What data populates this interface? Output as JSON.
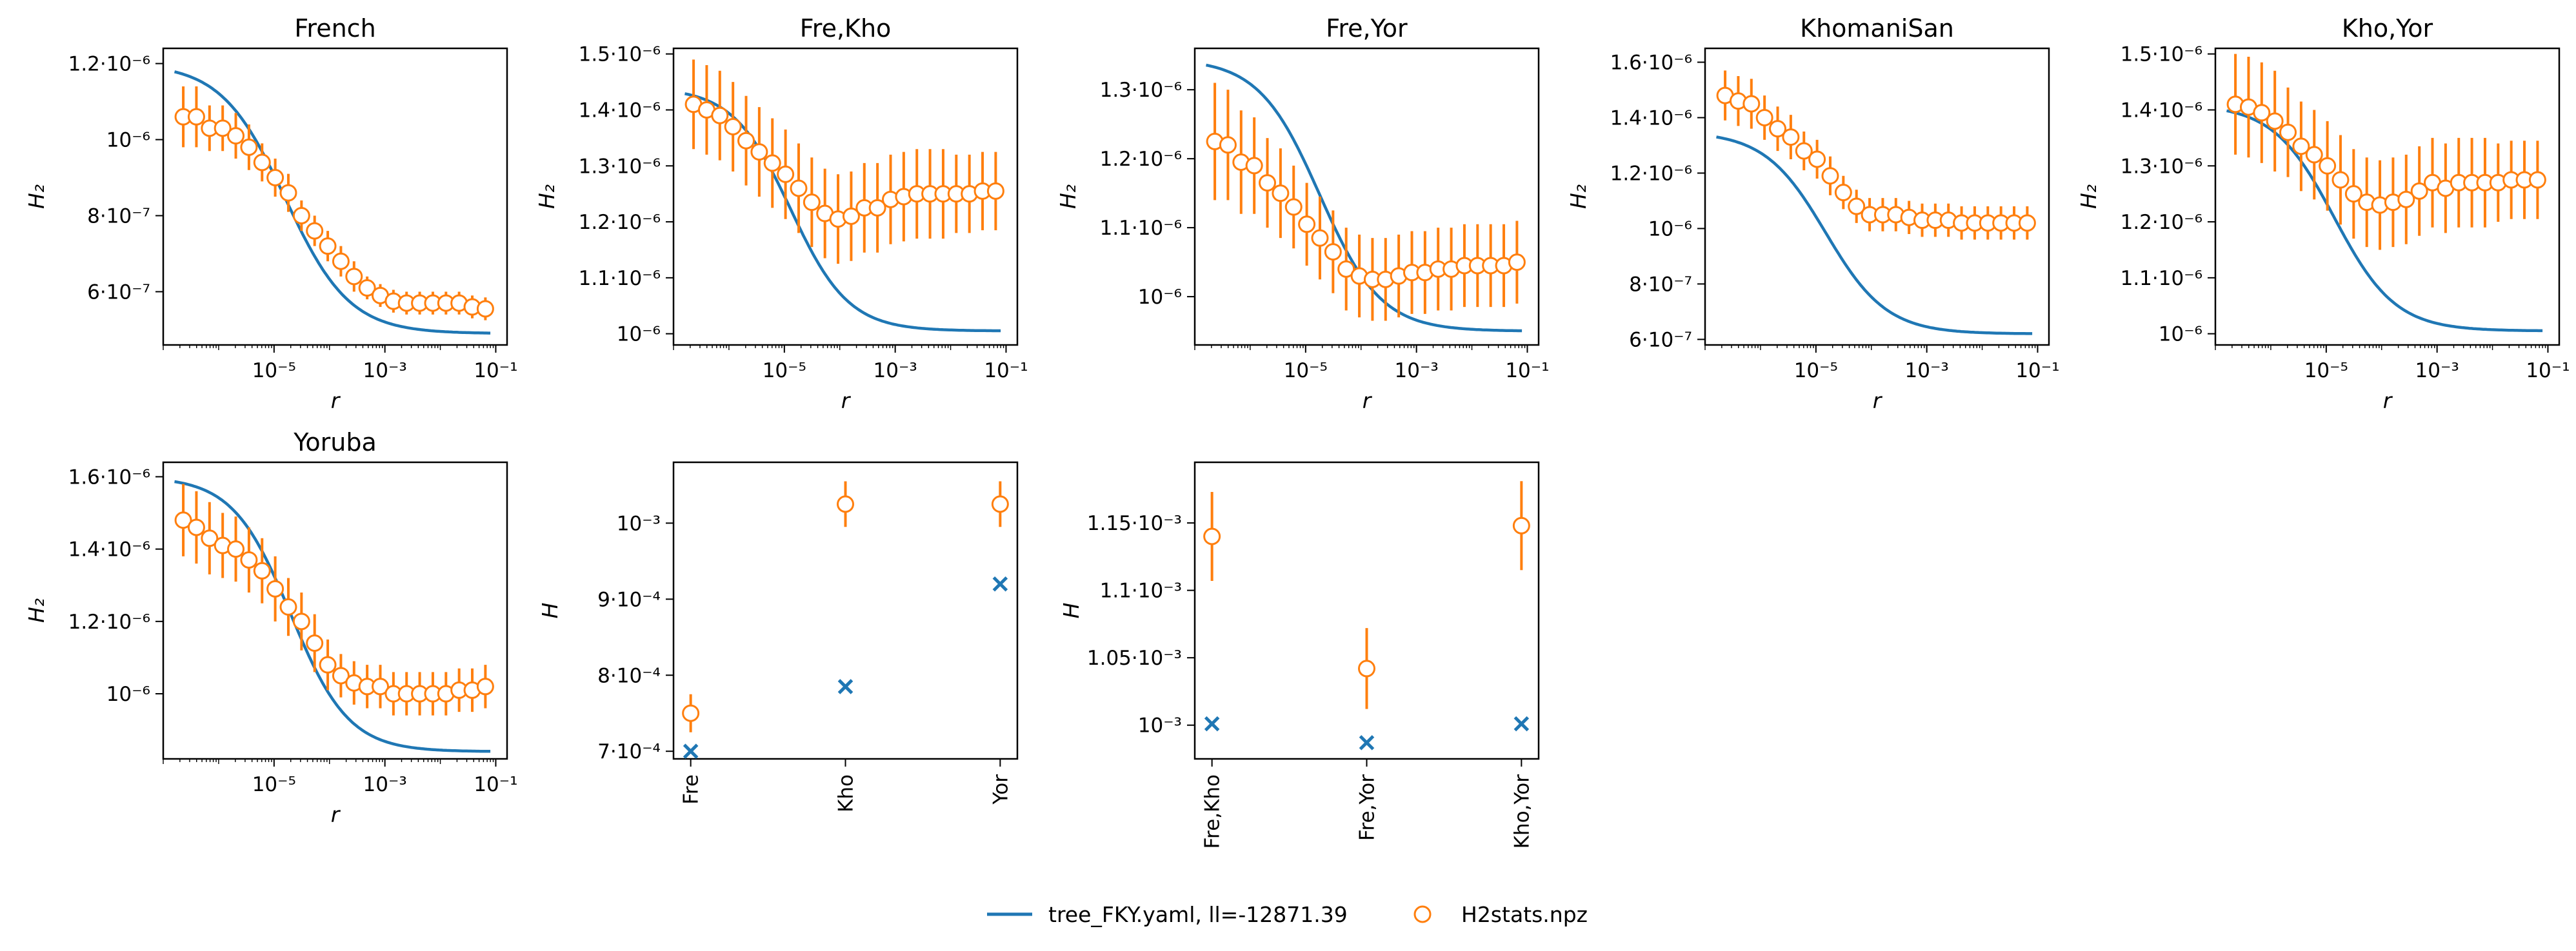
{
  "colors": {
    "model": "#1f77b4",
    "data": "#ff7f0e",
    "axes": "#000000"
  },
  "legend": {
    "model_label": "tree_FKY.yaml, ll=-12871.39",
    "data_label": "H2stats.npz"
  },
  "chart_data": [
    {
      "type": "line",
      "title": "French",
      "xlabel": "r",
      "ylabel": "H₂",
      "xscale": "log",
      "xlim": [
        1e-07,
        0.16
      ],
      "ylim": [
        4.6e-07,
        1.24e-06
      ],
      "xticks": [
        1e-05,
        0.001,
        0.1
      ],
      "xtick_labels": [
        "10⁻⁵",
        "10⁻³",
        "10⁻¹"
      ],
      "yticks": [
        6e-07,
        8e-07,
        1e-06,
        1.2e-06
      ],
      "ytick_labels": [
        "6·10⁻⁷",
        "8·10⁻⁷",
        "10⁻⁶",
        "1.2·10⁻⁶"
      ],
      "series": [
        {
          "name": "tree_FKY.yaml, ll=-12871.39",
          "kind": "line",
          "x_range": [
            1.6e-07,
            0.08
          ],
          "x_center": 1.6e-05,
          "width_decades": 1.05,
          "y_low": 4.9e-07,
          "y_high": 1.2e-06
        },
        {
          "name": "H2stats.npz",
          "kind": "errorbar",
          "values": [
            1.06e-06,
            1.06e-06,
            1.03e-06,
            1.03e-06,
            1.01e-06,
            9.8e-07,
            9.4e-07,
            9e-07,
            8.6e-07,
            8e-07,
            7.6e-07,
            7.2e-07,
            6.8e-07,
            6.4e-07,
            6.1e-07,
            5.9e-07,
            5.75e-07,
            5.7e-07,
            5.7e-07,
            5.7e-07,
            5.7e-07,
            5.7e-07,
            5.6e-07,
            5.55e-07
          ],
          "errors": [
            8e-08,
            8e-08,
            6e-08,
            6e-08,
            6e-08,
            6e-08,
            5e-08,
            5e-08,
            5e-08,
            4e-08,
            4e-08,
            4e-08,
            4e-08,
            4e-08,
            3e-08,
            3e-08,
            3e-08,
            3e-08,
            3e-08,
            3e-08,
            3e-08,
            3e-08,
            3e-08,
            3e-08
          ]
        }
      ]
    },
    {
      "type": "line",
      "title": "Fre,Kho",
      "xlabel": "r",
      "ylabel": "H₂",
      "xscale": "log",
      "xlim": [
        1e-07,
        0.16
      ],
      "ylim": [
        9.8e-07,
        1.51e-06
      ],
      "xticks": [
        1e-05,
        0.001,
        0.1
      ],
      "xtick_labels": [
        "10⁻⁵",
        "10⁻³",
        "10⁻¹"
      ],
      "yticks": [
        1e-06,
        1.1e-06,
        1.2e-06,
        1.3e-06,
        1.4e-06,
        1.5e-06
      ],
      "ytick_labels": [
        "10⁻⁶",
        "1.1·10⁻⁶",
        "1.2·10⁻⁶",
        "1.3·10⁻⁶",
        "1.4·10⁻⁶",
        "1.5·10⁻⁶"
      ],
      "series": [
        {
          "name": "tree_FKY.yaml, ll=-12871.39",
          "kind": "line",
          "x_range": [
            1.6e-07,
            0.08
          ],
          "x_center": 1.3e-05,
          "width_decades": 0.95,
          "y_low": 1.005e-06,
          "y_high": 1.44e-06
        },
        {
          "name": "H2stats.npz",
          "kind": "errorbar",
          "values": [
            1.41e-06,
            1.4e-06,
            1.39e-06,
            1.37e-06,
            1.345e-06,
            1.325e-06,
            1.305e-06,
            1.285e-06,
            1.26e-06,
            1.235e-06,
            1.215e-06,
            1.205e-06,
            1.21e-06,
            1.225e-06,
            1.225e-06,
            1.24e-06,
            1.245e-06,
            1.25e-06,
            1.25e-06,
            1.25e-06,
            1.25e-06,
            1.25e-06,
            1.255e-06,
            1.255e-06
          ],
          "errors": [
            8e-08,
            8e-08,
            8e-08,
            8e-08,
            8e-08,
            8e-08,
            8e-08,
            8e-08,
            8e-08,
            8e-08,
            8e-08,
            8e-08,
            8e-08,
            8e-08,
            8e-08,
            8e-08,
            8e-08,
            8e-08,
            8e-08,
            8e-08,
            7e-08,
            7e-08,
            7e-08,
            7e-08
          ]
        }
      ]
    },
    {
      "type": "line",
      "title": "Fre,Yor",
      "xlabel": "r",
      "ylabel": "H₂",
      "xscale": "log",
      "xlim": [
        1e-07,
        0.16
      ],
      "ylim": [
        9.3e-07,
        1.36e-06
      ],
      "xticks": [
        1e-05,
        0.001,
        0.1
      ],
      "xtick_labels": [
        "10⁻⁵",
        "10⁻³",
        "10⁻¹"
      ],
      "yticks": [
        1e-06,
        1.1e-06,
        1.2e-06,
        1.3e-06
      ],
      "ytick_labels": [
        "10⁻⁶",
        "1.1·10⁻⁶",
        "1.2·10⁻⁶",
        "1.3·10⁻⁶"
      ],
      "series": [
        {
          "name": "tree_FKY.yaml, ll=-12871.39",
          "kind": "line",
          "x_range": [
            1.6e-07,
            0.08
          ],
          "x_center": 1.8e-05,
          "width_decades": 1.0,
          "y_low": 9.5e-07,
          "y_high": 1.345e-06
        },
        {
          "name": "H2stats.npz",
          "kind": "errorbar",
          "values": [
            1.225e-06,
            1.22e-06,
            1.195e-06,
            1.19e-06,
            1.165e-06,
            1.15e-06,
            1.13e-06,
            1.105e-06,
            1.085e-06,
            1.065e-06,
            1.04e-06,
            1.03e-06,
            1.025e-06,
            1.025e-06,
            1.03e-06,
            1.035e-06,
            1.035e-06,
            1.04e-06,
            1.04e-06,
            1.045e-06,
            1.045e-06,
            1.045e-06,
            1.045e-06,
            1.05e-06
          ],
          "errors": [
            8.5e-08,
            8e-08,
            7.5e-08,
            7e-08,
            6.5e-08,
            6.5e-08,
            6e-08,
            6e-08,
            6e-08,
            6e-08,
            6e-08,
            6e-08,
            6e-08,
            6e-08,
            6e-08,
            6e-08,
            6e-08,
            6e-08,
            6e-08,
            6e-08,
            6e-08,
            6e-08,
            6e-08,
            6e-08
          ]
        }
      ]
    },
    {
      "type": "line",
      "title": "KhomaniSan",
      "xlabel": "r",
      "ylabel": "H₂",
      "xscale": "log",
      "xlim": [
        1e-07,
        0.16
      ],
      "ylim": [
        5.8e-07,
        1.65e-06
      ],
      "xticks": [
        1e-05,
        0.001,
        0.1
      ],
      "xtick_labels": [
        "10⁻⁵",
        "10⁻³",
        "10⁻¹"
      ],
      "yticks": [
        6e-07,
        8e-07,
        1e-06,
        1.2e-06,
        1.4e-06,
        1.6e-06
      ],
      "ytick_labels": [
        "6·10⁻⁷",
        "8·10⁻⁷",
        "10⁻⁶",
        "1.2·10⁻⁶",
        "1.4·10⁻⁶",
        "1.6·10⁻⁶"
      ],
      "series": [
        {
          "name": "tree_FKY.yaml, ll=-12871.39",
          "kind": "line",
          "x_range": [
            1.6e-07,
            0.08
          ],
          "x_center": 1.5e-05,
          "width_decades": 1.0,
          "y_low": 6.2e-07,
          "y_high": 1.35e-06
        },
        {
          "name": "H2stats.npz",
          "kind": "errorbar",
          "values": [
            1.48e-06,
            1.46e-06,
            1.45e-06,
            1.4e-06,
            1.36e-06,
            1.33e-06,
            1.28e-06,
            1.25e-06,
            1.19e-06,
            1.13e-06,
            1.08e-06,
            1.05e-06,
            1.05e-06,
            1.05e-06,
            1.04e-06,
            1.03e-06,
            1.03e-06,
            1.03e-06,
            1.02e-06,
            1.02e-06,
            1.02e-06,
            1.02e-06,
            1.02e-06,
            1.02e-06
          ],
          "errors": [
            9e-08,
            9e-08,
            9e-08,
            8e-08,
            8e-08,
            8e-08,
            7e-08,
            7e-08,
            7e-08,
            6e-08,
            6e-08,
            6e-08,
            6e-08,
            6e-08,
            6e-08,
            6e-08,
            6e-08,
            6e-08,
            6e-08,
            6e-08,
            6e-08,
            6e-08,
            6e-08,
            6e-08
          ]
        }
      ]
    },
    {
      "type": "line",
      "title": "Kho,Yor",
      "xlabel": "r",
      "ylabel": "H₂",
      "xscale": "log",
      "xlim": [
        1e-07,
        0.16
      ],
      "ylim": [
        9.8e-07,
        1.51e-06
      ],
      "xticks": [
        1e-05,
        0.001,
        0.1
      ],
      "xtick_labels": [
        "10⁻⁵",
        "10⁻³",
        "10⁻¹"
      ],
      "yticks": [
        1e-06,
        1.1e-06,
        1.2e-06,
        1.3e-06,
        1.4e-06,
        1.5e-06
      ],
      "ytick_labels": [
        "10⁻⁶",
        "1.1·10⁻⁶",
        "1.2·10⁻⁶",
        "1.3·10⁻⁶",
        "1.4·10⁻⁶",
        "1.5·10⁻⁶"
      ],
      "series": [
        {
          "name": "tree_FKY.yaml, ll=-12871.39",
          "kind": "line",
          "x_range": [
            1.6e-07,
            0.08
          ],
          "x_center": 1.4e-05,
          "width_decades": 1.0,
          "y_low": 1.005e-06,
          "y_high": 1.41e-06
        },
        {
          "name": "H2stats.npz",
          "kind": "errorbar",
          "values": [
            1.41e-06,
            1.405e-06,
            1.395e-06,
            1.38e-06,
            1.36e-06,
            1.335e-06,
            1.32e-06,
            1.3e-06,
            1.275e-06,
            1.25e-06,
            1.235e-06,
            1.23e-06,
            1.235e-06,
            1.24e-06,
            1.255e-06,
            1.27e-06,
            1.26e-06,
            1.27e-06,
            1.27e-06,
            1.27e-06,
            1.27e-06,
            1.275e-06,
            1.275e-06,
            1.275e-06
          ],
          "errors": [
            9e-08,
            9e-08,
            9e-08,
            9e-08,
            8e-08,
            8e-08,
            8e-08,
            8e-08,
            8e-08,
            8e-08,
            8e-08,
            8e-08,
            8e-08,
            8e-08,
            8e-08,
            8e-08,
            8e-08,
            8e-08,
            8e-08,
            8e-08,
            7e-08,
            7e-08,
            7e-08,
            7e-08
          ]
        }
      ]
    },
    {
      "type": "line",
      "title": "Yoruba",
      "xlabel": "r",
      "ylabel": "H₂",
      "xscale": "log",
      "xlim": [
        1e-07,
        0.16
      ],
      "ylim": [
        8.2e-07,
        1.64e-06
      ],
      "xticks": [
        1e-05,
        0.001,
        0.1
      ],
      "xtick_labels": [
        "10⁻⁵",
        "10⁻³",
        "10⁻¹"
      ],
      "yticks": [
        1e-06,
        1.2e-06,
        1.4e-06,
        1.6e-06
      ],
      "ytick_labels": [
        "10⁻⁶",
        "1.2·10⁻⁶",
        "1.4·10⁻⁶",
        "1.6·10⁻⁶"
      ],
      "series": [
        {
          "name": "tree_FKY.yaml, ll=-12871.39",
          "kind": "line",
          "x_range": [
            1.6e-07,
            0.08
          ],
          "x_center": 2e-05,
          "width_decades": 0.95,
          "y_low": 8.4e-07,
          "y_high": 1.6e-06
        },
        {
          "name": "H2stats.npz",
          "kind": "errorbar",
          "values": [
            1.48e-06,
            1.46e-06,
            1.43e-06,
            1.41e-06,
            1.4e-06,
            1.37e-06,
            1.34e-06,
            1.29e-06,
            1.24e-06,
            1.2e-06,
            1.14e-06,
            1.08e-06,
            1.05e-06,
            1.03e-06,
            1.02e-06,
            1.02e-06,
            1e-06,
            1e-06,
            1e-06,
            1e-06,
            1e-06,
            1.01e-06,
            1.01e-06,
            1.02e-06
          ],
          "errors": [
            1e-07,
            1e-07,
            1e-07,
            9e-08,
            9e-08,
            9e-08,
            9e-08,
            9e-08,
            8e-08,
            8e-08,
            8e-08,
            7e-08,
            6e-08,
            6e-08,
            6e-08,
            6e-08,
            6e-08,
            6e-08,
            6e-08,
            6e-08,
            6e-08,
            6e-08,
            6e-08,
            6e-08
          ]
        }
      ]
    },
    {
      "type": "scatter",
      "title": "",
      "xlabel": "",
      "ylabel": "H",
      "categories": [
        "Fre",
        "Kho",
        "Yor"
      ],
      "ylim": [
        0.00069,
        0.00108
      ],
      "yticks": [
        0.0007,
        0.0008,
        0.0009,
        0.001
      ],
      "ytick_labels": [
        "7·10⁻⁴",
        "8·10⁻⁴",
        "9·10⁻⁴",
        "10⁻³"
      ],
      "series": [
        {
          "name": "tree_FKY.yaml, ll=-12871.39",
          "kind": "x-marker",
          "values": [
            0.0007,
            0.000785,
            0.00092
          ]
        },
        {
          "name": "H2stats.npz",
          "kind": "errorbar",
          "values": [
            0.00075,
            0.001025,
            0.001025
          ],
          "errors": [
            2.5e-05,
            3e-05,
            3e-05
          ]
        }
      ]
    },
    {
      "type": "scatter",
      "title": "",
      "xlabel": "",
      "ylabel": "H",
      "categories": [
        "Fre,Kho",
        "Fre,Yor",
        "Kho,Yor"
      ],
      "ylim": [
        0.000975,
        0.001195
      ],
      "yticks": [
        0.001,
        0.00105,
        0.0011,
        0.00115
      ],
      "ytick_labels": [
        "10⁻³",
        "1.05·10⁻³",
        "1.1·10⁻³",
        "1.15·10⁻³"
      ],
      "series": [
        {
          "name": "tree_FKY.yaml, ll=-12871.39",
          "kind": "x-marker",
          "values": [
            0.001001,
            0.000987,
            0.001001
          ]
        },
        {
          "name": "H2stats.npz",
          "kind": "errorbar",
          "values": [
            0.00114,
            0.001042,
            0.001148
          ],
          "errors": [
            3.3e-05,
            3e-05,
            3.3e-05
          ]
        }
      ]
    }
  ]
}
